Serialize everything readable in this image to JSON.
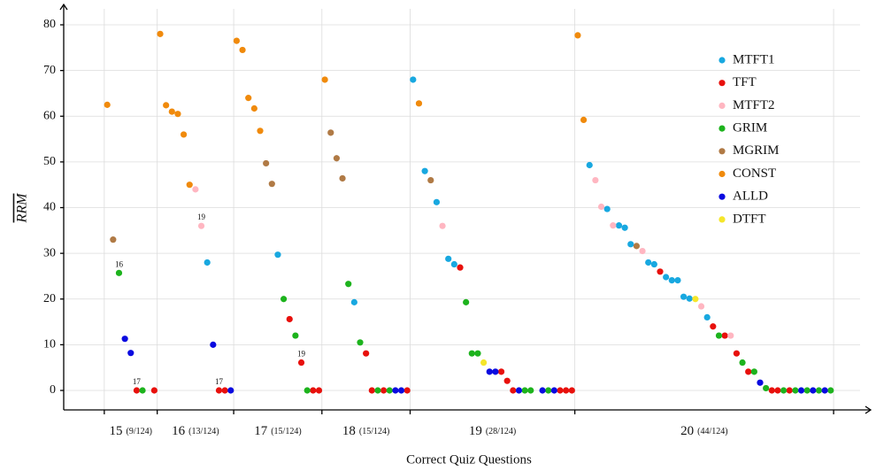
{
  "chart_data": {
    "type": "scatter",
    "xlabel": "Correct Quiz Questions",
    "ylabel": "RRM",
    "xlim": [
      -6.4,
      129
    ],
    "xticks": [
      0.5,
      9.5,
      22.5,
      37.5,
      52.5,
      80.5,
      124.5
    ],
    "ylim": [
      -4.26,
      84.46
    ],
    "yticks": [
      0,
      10,
      20,
      30,
      40,
      50,
      60,
      70,
      80
    ],
    "grid": true,
    "legend": "upper right",
    "categories": [
      "15",
      "16",
      "17",
      "18",
      "19",
      "20"
    ],
    "category_notes": [
      "(9/124)",
      "(13/124)",
      "(15/124)",
      "(15/124)",
      "(28/124)",
      "(44/124)"
    ],
    "series": [
      {
        "name": "MTFT1",
        "color": "#18a8e0",
        "x": [
          18,
          30,
          43,
          53,
          55,
          57,
          59,
          60,
          83,
          86,
          88,
          89,
          90,
          93,
          94,
          96,
          97,
          98,
          99,
          100,
          103
        ],
        "values": [
          28,
          29.7,
          19.3,
          68,
          48,
          41.2,
          28.8,
          27.6,
          49.3,
          39.7,
          36.1,
          35.6,
          32,
          28,
          27.6,
          24.8,
          24.1,
          24.1,
          20.5,
          20.1,
          16
        ]
      },
      {
        "name": "TFT",
        "color": "#e8100c",
        "x": [
          6,
          9,
          20,
          21,
          32,
          34,
          36,
          37,
          45,
          46,
          48,
          52,
          61,
          68,
          69,
          70,
          78,
          79,
          80,
          95,
          104,
          106,
          108,
          110,
          114,
          115,
          117
        ],
        "values": [
          0,
          0,
          0,
          0,
          15.6,
          6.1,
          0,
          0,
          8.1,
          0,
          0,
          0,
          26.9,
          4.1,
          2.1,
          0,
          0,
          0,
          0,
          26,
          14,
          12,
          8.1,
          4.1,
          0,
          0,
          0
        ]
      },
      {
        "name": "MTFT2",
        "color": "#ffb6c1",
        "x": [
          16,
          17,
          58,
          84,
          85,
          87,
          92,
          102,
          107
        ],
        "values": [
          44,
          36,
          36,
          46,
          40.2,
          36.1,
          30.5,
          18.4,
          12
        ]
      },
      {
        "name": "GRIM",
        "color": "#1db31d",
        "x": [
          3,
          7,
          31,
          33,
          35,
          42,
          44,
          47,
          49,
          62,
          63,
          64,
          72,
          73,
          76,
          105,
          109,
          111,
          113,
          116,
          118,
          120,
          122,
          124
        ],
        "values": [
          25.7,
          0,
          20,
          12,
          0,
          23.3,
          10.5,
          0,
          0,
          19.3,
          8.1,
          8.1,
          0,
          0,
          0,
          12,
          6.1,
          4.1,
          0.5,
          0,
          0,
          0,
          0,
          0
        ]
      },
      {
        "name": "MGRIM",
        "color": "#b07a45",
        "x": [
          2,
          28,
          29,
          39,
          40,
          41,
          56,
          91
        ],
        "values": [
          33,
          49.7,
          45.2,
          56.4,
          50.8,
          46.4,
          46,
          31.6
        ]
      },
      {
        "name": "CONST",
        "color": "#f08a0c",
        "x": [
          1,
          10,
          11,
          12,
          13,
          14,
          15,
          23,
          24,
          25,
          26,
          27,
          38,
          54,
          81,
          82
        ],
        "values": [
          62.5,
          78,
          62.4,
          61,
          60.5,
          56,
          45,
          76.5,
          74.5,
          64,
          61.7,
          56.8,
          68,
          62.8,
          77.7,
          59.2
        ]
      },
      {
        "name": "ALLD",
        "color": "#0a0ae0",
        "x": [
          4,
          5,
          19,
          22,
          50,
          51,
          66,
          67,
          71,
          75,
          77,
          112,
          119,
          121,
          123
        ],
        "values": [
          11.3,
          8.2,
          10,
          0,
          0,
          0,
          4.1,
          4.1,
          0,
          0,
          0,
          1.7,
          0,
          0,
          0
        ]
      },
      {
        "name": "DTFT",
        "color": "#f5e62a",
        "x": [
          65,
          101
        ],
        "values": [
          6.1,
          20
        ]
      }
    ],
    "annotations": [
      {
        "text": "16",
        "x": 3,
        "y": 25.7
      },
      {
        "text": "17",
        "x": 6,
        "y": 0
      },
      {
        "text": "19",
        "x": 17,
        "y": 36
      },
      {
        "text": "17",
        "x": 20,
        "y": 0
      },
      {
        "text": "19",
        "x": 34,
        "y": 6.1
      }
    ]
  }
}
